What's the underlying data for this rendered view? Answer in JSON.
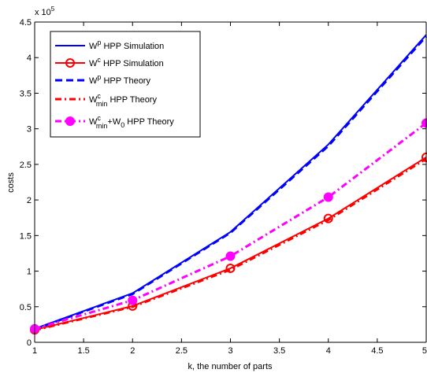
{
  "chart_data": {
    "type": "line",
    "xlabel": "k, the number of parts",
    "ylabel": "costs",
    "xlim": [
      1,
      5
    ],
    "ylim": [
      0,
      450000
    ],
    "y_exponent_label": "x 10",
    "y_exponent_power": "5",
    "x_ticks": [
      {
        "value": 1,
        "label": "1"
      },
      {
        "value": 1.5,
        "label": "1.5"
      },
      {
        "value": 2,
        "label": "2"
      },
      {
        "value": 2.5,
        "label": "2.5"
      },
      {
        "value": 3,
        "label": "3"
      },
      {
        "value": 3.5,
        "label": "3.5"
      },
      {
        "value": 4,
        "label": "4"
      },
      {
        "value": 4.5,
        "label": "4.5"
      },
      {
        "value": 5,
        "label": "5"
      }
    ],
    "y_ticks": [
      {
        "value": 0,
        "label": "0"
      },
      {
        "value": 50000,
        "label": "0.5"
      },
      {
        "value": 100000,
        "label": "1"
      },
      {
        "value": 150000,
        "label": "1.5"
      },
      {
        "value": 200000,
        "label": "2"
      },
      {
        "value": 250000,
        "label": "2.5"
      },
      {
        "value": 300000,
        "label": "3"
      },
      {
        "value": 350000,
        "label": "3.5"
      },
      {
        "value": 400000,
        "label": "4"
      },
      {
        "value": 450000,
        "label": "4.5"
      }
    ],
    "grid": false,
    "legend_position": "top-left",
    "series": [
      {
        "id": "wp-sim",
        "name_main": "W",
        "name_sup": "p",
        "name_sub": "",
        "name_tail": " HPP Simulation",
        "color": "#0000ff",
        "line": "solid",
        "marker": "none",
        "x": [
          1,
          2,
          3,
          4,
          5
        ],
        "y": [
          19000,
          69000,
          155000,
          278000,
          432000
        ]
      },
      {
        "id": "wc-sim",
        "name_main": "W",
        "name_sup": "c",
        "name_sub": "",
        "name_tail": " HPP Simulation",
        "color": "#ff0000",
        "line": "solid",
        "marker": "circle-open",
        "x": [
          1,
          2,
          3,
          4,
          5
        ],
        "y": [
          17500,
          51000,
          104000,
          174000,
          260000
        ]
      },
      {
        "id": "wp-theory",
        "name_main": "W",
        "name_sup": "p",
        "name_sub": "",
        "name_tail": " HPP Theory",
        "color": "#0000ff",
        "line": "dashed",
        "marker": "none",
        "x": [
          1,
          2,
          3,
          4,
          5
        ],
        "y": [
          18500,
          68000,
          154000,
          276000,
          430000
        ]
      },
      {
        "id": "wcmin-theory",
        "name_main": "W",
        "name_sup": "c",
        "name_sub": "min",
        "name_tail": " HPP Theory",
        "color": "#ff0000",
        "line": "dashdot",
        "marker": "none",
        "x": [
          1,
          2,
          3,
          4,
          5
        ],
        "y": [
          17000,
          50000,
          102000,
          172000,
          258000
        ]
      },
      {
        "id": "wcmin-w0-theory",
        "name_main": "W",
        "name_sup": "c",
        "name_sub": "min",
        "name_tail": "+W",
        "name_tail_sub": "0",
        "name_tail2": " HPP Theory",
        "color": "#ff00ff",
        "line": "dashdot",
        "marker": "circle-filled",
        "x": [
          1,
          2,
          3,
          4,
          5
        ],
        "y": [
          19000,
          59000,
          121000,
          204000,
          308000
        ]
      }
    ]
  }
}
